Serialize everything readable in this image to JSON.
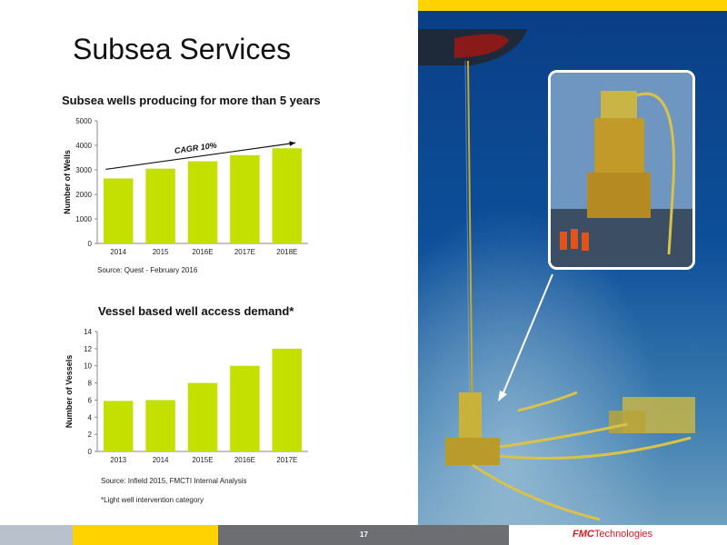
{
  "colors": {
    "top_bar_left": "#ffffff",
    "top_bar_right": "#ffd200",
    "bar_fill": "#c3e000",
    "footer_1": "#b9c2cc",
    "footer_2": "#ffd200",
    "footer_3": "#6d6e71",
    "logo_red": "#d71920"
  },
  "slide": {
    "title": "Subsea Services",
    "page_number": "17",
    "logo_brand": "FMC",
    "logo_suffix": "Technologies"
  },
  "chart1": {
    "title": "Subsea wells producing for more than 5 years",
    "source": "Source:  Quest - February 2016"
  },
  "chart2": {
    "title": "Vessel based well access demand*",
    "source": "Source:  Infield 2015, FMCTI Internal Analysis",
    "footnote": "*Light well intervention category"
  },
  "chart_data": [
    {
      "type": "bar",
      "title": "Subsea wells producing for more than 5 years",
      "categories": [
        "2014",
        "2015",
        "2016E",
        "2017E",
        "2018E"
      ],
      "values": [
        2650,
        3050,
        3350,
        3600,
        3880
      ],
      "ylabel": "Number of Wells",
      "xlabel": "",
      "ylim": [
        0,
        5000
      ],
      "yticks": [
        0,
        1000,
        2000,
        3000,
        4000,
        5000
      ],
      "annotation": "CAGR 10%",
      "grid": false,
      "legend": "none"
    },
    {
      "type": "bar",
      "title": "Vessel based well access demand*",
      "categories": [
        "2013",
        "2014",
        "2015E",
        "2016E",
        "2017E"
      ],
      "values": [
        5.9,
        6.0,
        8.0,
        10.0,
        12.0
      ],
      "ylabel": "Number of Vessels",
      "xlabel": "",
      "ylim": [
        0,
        14
      ],
      "yticks": [
        0,
        2,
        4,
        6,
        8,
        10,
        12,
        14
      ],
      "grid": false,
      "legend": "none"
    }
  ]
}
